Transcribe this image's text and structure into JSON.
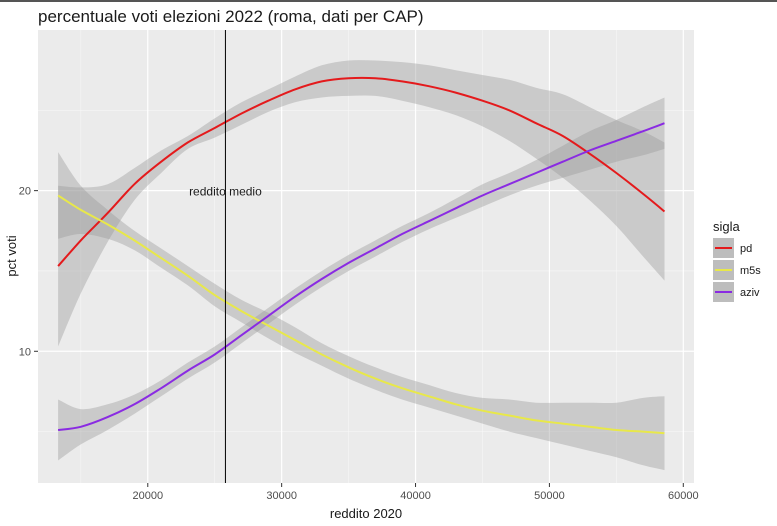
{
  "chart_data": {
    "type": "line",
    "title": "percentuale voti elezioni 2022 (roma, dati per CAP)",
    "xlabel": "reddito 2020",
    "ylabel": "pct voti",
    "xlim": [
      11800,
      60800
    ],
    "ylim": [
      1.8,
      30.0
    ],
    "x_ticks": [
      20000,
      30000,
      40000,
      50000,
      60000
    ],
    "y_ticks": [
      10,
      20
    ],
    "grid": true,
    "legend": {
      "title": "sigla",
      "position": "right"
    },
    "vline": {
      "x": 25800,
      "label": "reddito medio",
      "label_y": 20
    },
    "series": [
      {
        "name": "pd",
        "color": "#e41a1c",
        "x": [
          13300,
          15000,
          17000,
          19000,
          21000,
          23000,
          25000,
          27000,
          29000,
          31000,
          33000,
          35000,
          37000,
          39000,
          41000,
          43000,
          45000,
          47000,
          49000,
          51000,
          53000,
          55000,
          57000,
          58600
        ],
        "y": [
          15.3,
          16.9,
          18.6,
          20.4,
          21.8,
          23.0,
          23.9,
          24.8,
          25.6,
          26.3,
          26.8,
          27.0,
          27.0,
          26.8,
          26.5,
          26.1,
          25.6,
          25.0,
          24.2,
          23.4,
          22.3,
          21.1,
          19.8,
          18.7
        ],
        "lower": [
          10.3,
          13.6,
          16.8,
          19.4,
          21.1,
          22.6,
          23.3,
          24.1,
          24.9,
          25.5,
          25.8,
          25.9,
          25.9,
          25.6,
          25.2,
          24.7,
          24.0,
          23.1,
          22.0,
          20.8,
          19.4,
          17.8,
          15.9,
          14.4
        ],
        "upper": [
          20.3,
          20.2,
          20.4,
          21.4,
          22.5,
          23.4,
          24.5,
          25.5,
          26.3,
          27.1,
          27.8,
          28.1,
          28.1,
          28.0,
          27.8,
          27.5,
          27.2,
          26.9,
          26.4,
          26.0,
          25.2,
          24.4,
          23.7,
          23.0
        ]
      },
      {
        "name": "m5s",
        "color": "#e8e84a",
        "x": [
          13300,
          15000,
          17000,
          19000,
          21000,
          23000,
          25000,
          27000,
          29000,
          31000,
          33000,
          35000,
          37000,
          39000,
          41000,
          43000,
          45000,
          47000,
          49000,
          51000,
          53000,
          55000,
          57000,
          58600
        ],
        "y": [
          19.7,
          18.8,
          17.9,
          16.9,
          15.8,
          14.7,
          13.5,
          12.5,
          11.6,
          10.7,
          9.8,
          9.0,
          8.3,
          7.7,
          7.2,
          6.7,
          6.3,
          6.0,
          5.7,
          5.5,
          5.3,
          5.1,
          5.0,
          4.9
        ],
        "lower": [
          17.0,
          17.3,
          17.0,
          16.3,
          15.2,
          14.1,
          12.8,
          11.8,
          10.8,
          9.9,
          9.1,
          8.3,
          7.6,
          7.0,
          6.5,
          6.0,
          5.5,
          5.0,
          4.6,
          4.2,
          3.8,
          3.4,
          2.9,
          2.6
        ],
        "upper": [
          22.4,
          20.3,
          18.8,
          17.5,
          16.4,
          15.3,
          14.2,
          13.2,
          12.4,
          11.5,
          10.5,
          9.7,
          9.0,
          8.4,
          7.9,
          7.4,
          7.1,
          7.0,
          6.8,
          6.8,
          6.8,
          6.8,
          7.1,
          7.2
        ]
      },
      {
        "name": "aziv",
        "color": "#8a2be2",
        "x": [
          13300,
          15000,
          17000,
          19000,
          21000,
          23000,
          25000,
          27000,
          29000,
          31000,
          33000,
          35000,
          37000,
          39000,
          41000,
          43000,
          45000,
          47000,
          49000,
          51000,
          53000,
          55000,
          57000,
          58600
        ],
        "y": [
          5.1,
          5.3,
          5.9,
          6.7,
          7.7,
          8.8,
          9.8,
          11.0,
          12.2,
          13.4,
          14.5,
          15.5,
          16.4,
          17.3,
          18.1,
          18.9,
          19.7,
          20.4,
          21.1,
          21.8,
          22.5,
          23.1,
          23.7,
          24.2
        ],
        "lower": [
          3.2,
          4.2,
          5.1,
          6.1,
          7.2,
          8.3,
          9.3,
          10.5,
          11.7,
          12.9,
          14.0,
          15.0,
          15.9,
          16.8,
          17.6,
          18.3,
          19.0,
          19.7,
          20.3,
          20.8,
          21.3,
          21.8,
          22.2,
          22.6
        ],
        "upper": [
          7.0,
          6.4,
          6.7,
          7.3,
          8.2,
          9.3,
          10.3,
          11.5,
          12.7,
          13.9,
          15.0,
          16.0,
          16.9,
          17.8,
          18.6,
          19.5,
          20.4,
          21.1,
          21.9,
          22.8,
          23.7,
          24.4,
          25.2,
          25.8
        ]
      }
    ]
  }
}
